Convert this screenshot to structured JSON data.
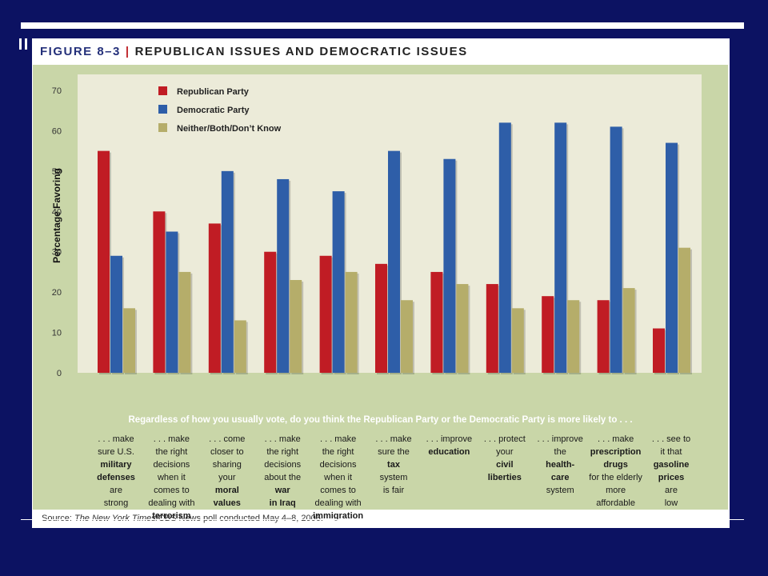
{
  "figure": {
    "number": "FIGURE 8–3",
    "separator": "|",
    "title": "REPUBLICAN ISSUES AND DEMOCRATIC ISSUES"
  },
  "caption": "Regardless of how you usually vote, do you think the Republican Party or the Democratic Party is more likely to . . .",
  "source": {
    "prefix": "Source: ",
    "publication": "The New York Times",
    "suffix": "/CBS News poll conducted May 4–8, 2006."
  },
  "colors": {
    "republican": "#c01c24",
    "democratic": "#2e5ea8",
    "neither": "#b5ad6a"
  },
  "chart_data": {
    "type": "bar",
    "ylabel": "Percentage Favoring",
    "ylim": [
      0,
      70
    ],
    "yticks": [
      0,
      10,
      20,
      30,
      40,
      50,
      60,
      70
    ],
    "legend_position": "top-left",
    "categories": [
      [
        {
          "t": ". . . make",
          "b": false
        },
        {
          "t": "sure U.S.",
          "b": false
        },
        {
          "t": "military",
          "b": true
        },
        {
          "t": "defenses",
          "b": true
        },
        {
          "t": "are",
          "b": false
        },
        {
          "t": "strong",
          "b": false
        }
      ],
      [
        {
          "t": ". . . make",
          "b": false
        },
        {
          "t": "the right",
          "b": false
        },
        {
          "t": "decisions",
          "b": false
        },
        {
          "t": "when it",
          "b": false
        },
        {
          "t": "comes to",
          "b": false
        },
        {
          "t": "dealing with",
          "b": false
        },
        {
          "t": "terrorism",
          "b": true
        }
      ],
      [
        {
          "t": ". . . come",
          "b": false
        },
        {
          "t": "closer to",
          "b": false
        },
        {
          "t": "sharing",
          "b": false
        },
        {
          "t": "your",
          "b": false
        },
        {
          "t": "moral",
          "b": true
        },
        {
          "t": "values",
          "b": true
        }
      ],
      [
        {
          "t": ". . . make",
          "b": false
        },
        {
          "t": "the right",
          "b": false
        },
        {
          "t": "decisions",
          "b": false
        },
        {
          "t": "about the",
          "b": false
        },
        {
          "t": "war",
          "b": true
        },
        {
          "t": "in Iraq",
          "b": true
        }
      ],
      [
        {
          "t": ". . . make",
          "b": false
        },
        {
          "t": "the right",
          "b": false
        },
        {
          "t": "decisions",
          "b": false
        },
        {
          "t": "when it",
          "b": false
        },
        {
          "t": "comes to",
          "b": false
        },
        {
          "t": "dealing with",
          "b": false
        },
        {
          "t": "immigration",
          "b": true
        }
      ],
      [
        {
          "t": ". . . make",
          "b": false
        },
        {
          "t": "sure the",
          "b": false
        },
        {
          "t": "tax",
          "b": true
        },
        {
          "t": "system",
          "b": false
        },
        {
          "t": "is fair",
          "b": false
        }
      ],
      [
        {
          "t": ". . . improve",
          "b": false
        },
        {
          "t": "education",
          "b": true
        }
      ],
      [
        {
          "t": ". . . protect",
          "b": false
        },
        {
          "t": "your",
          "b": false
        },
        {
          "t": "civil",
          "b": true
        },
        {
          "t": "liberties",
          "b": true
        }
      ],
      [
        {
          "t": ". . . improve",
          "b": false
        },
        {
          "t": "the",
          "b": false
        },
        {
          "t": "health-",
          "b": true
        },
        {
          "t": "care",
          "b": true
        },
        {
          "t": "system",
          "b": false
        }
      ],
      [
        {
          "t": ". . . make",
          "b": false
        },
        {
          "t": "prescription",
          "b": true
        },
        {
          "t": "drugs",
          "b": true
        },
        {
          "t": "for the elderly",
          "b": false
        },
        {
          "t": "more",
          "b": false
        },
        {
          "t": "affordable",
          "b": false
        }
      ],
      [
        {
          "t": ". . . see to",
          "b": false
        },
        {
          "t": "it that",
          "b": false
        },
        {
          "t": "gasoline",
          "b": true
        },
        {
          "t": "prices",
          "b": true
        },
        {
          "t": "are",
          "b": false
        },
        {
          "t": "low",
          "b": false
        }
      ]
    ],
    "series": [
      {
        "name": "Republican Party",
        "values": [
          55,
          40,
          37,
          30,
          29,
          27,
          25,
          22,
          19,
          18,
          11
        ]
      },
      {
        "name": "Democratic Party",
        "values": [
          29,
          35,
          50,
          48,
          45,
          55,
          53,
          62,
          62,
          61,
          57
        ]
      },
      {
        "name": "Neither/Both/Don’t Know",
        "values": [
          16,
          25,
          13,
          23,
          25,
          18,
          22,
          16,
          18,
          21,
          31
        ]
      }
    ]
  }
}
